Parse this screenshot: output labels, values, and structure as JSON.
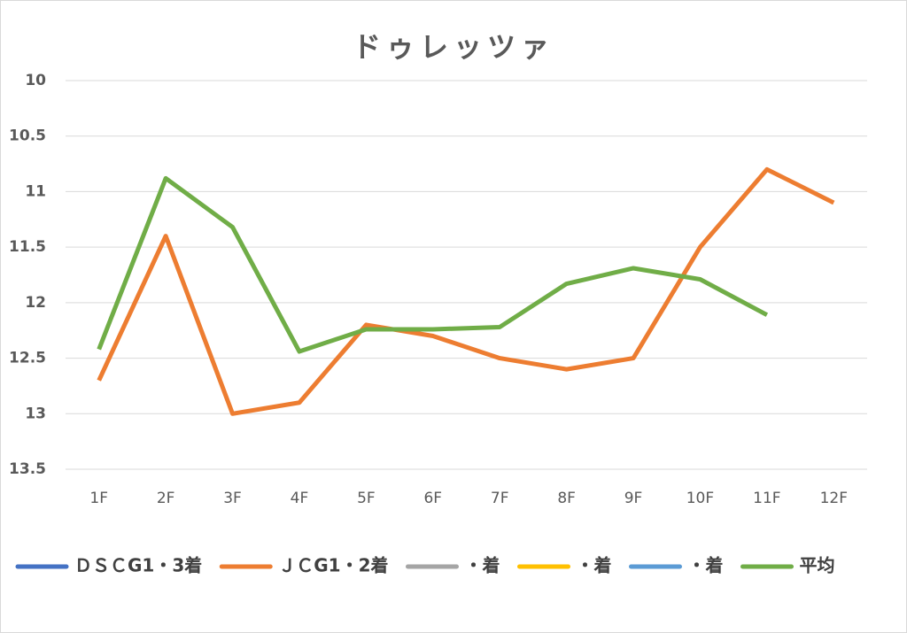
{
  "chart_data": {
    "type": "line",
    "title": "ドゥレッツァ",
    "categories": [
      "1F",
      "2F",
      "3F",
      "4F",
      "5F",
      "6F",
      "7F",
      "8F",
      "9F",
      "10F",
      "11F",
      "12F"
    ],
    "series": [
      {
        "name": "ＤＳＣG1・3着",
        "color": "#4472c4",
        "values": [
          null,
          null,
          null,
          null,
          null,
          null,
          null,
          null,
          null,
          null,
          null,
          null
        ]
      },
      {
        "name": "ＪＣG1・2着",
        "color": "#ed7d31",
        "values": [
          12.7,
          11.4,
          13.0,
          12.9,
          12.2,
          12.3,
          12.5,
          12.6,
          12.5,
          11.5,
          10.8,
          11.1
        ]
      },
      {
        "name": "・着",
        "color": "#a5a5a5",
        "values": [
          null,
          null,
          null,
          null,
          null,
          null,
          null,
          null,
          null,
          null,
          null,
          null
        ]
      },
      {
        "name": "・着",
        "color": "#ffc000",
        "values": [
          null,
          null,
          null,
          null,
          null,
          null,
          null,
          null,
          null,
          null,
          null,
          null
        ]
      },
      {
        "name": "・着",
        "color": "#5b9bd5",
        "values": [
          null,
          null,
          null,
          null,
          null,
          null,
          null,
          null,
          null,
          null,
          null,
          null
        ]
      },
      {
        "name": "平均",
        "color": "#70ad47",
        "values": [
          12.42,
          10.88,
          11.32,
          12.44,
          12.24,
          12.24,
          12.22,
          11.83,
          11.69,
          11.79,
          12.11,
          null
        ]
      }
    ],
    "ylim": [
      10,
      13.5
    ],
    "yticks": [
      10,
      10.5,
      11,
      11.5,
      12,
      12.5,
      13,
      13.5
    ],
    "y_reversed": true,
    "grid": true,
    "legend": "bottom"
  }
}
